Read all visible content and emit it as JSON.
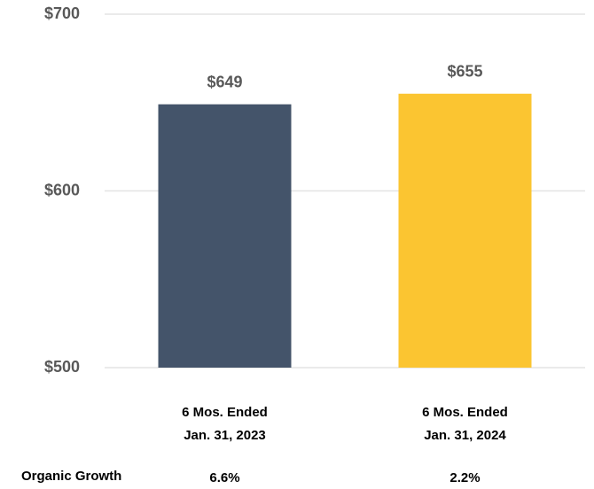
{
  "chart_data": {
    "type": "bar",
    "categories": [
      "6 Mos. Ended\nJan. 31, 2023",
      "6 Mos. Ended\nJan. 31, 2024"
    ],
    "values": [
      649,
      655
    ],
    "value_labels": [
      "$649",
      "$655"
    ],
    "colors": [
      "#44546a",
      "#fbc531"
    ],
    "ylim": [
      500,
      700
    ],
    "yticks": [
      {
        "value": 500,
        "label": "$500"
      },
      {
        "value": 600,
        "label": "$600"
      },
      {
        "value": 700,
        "label": "$700"
      }
    ],
    "grid": true
  },
  "organic_growth": {
    "label": "Organic Growth",
    "values": [
      "6.6%",
      "2.2%"
    ]
  }
}
